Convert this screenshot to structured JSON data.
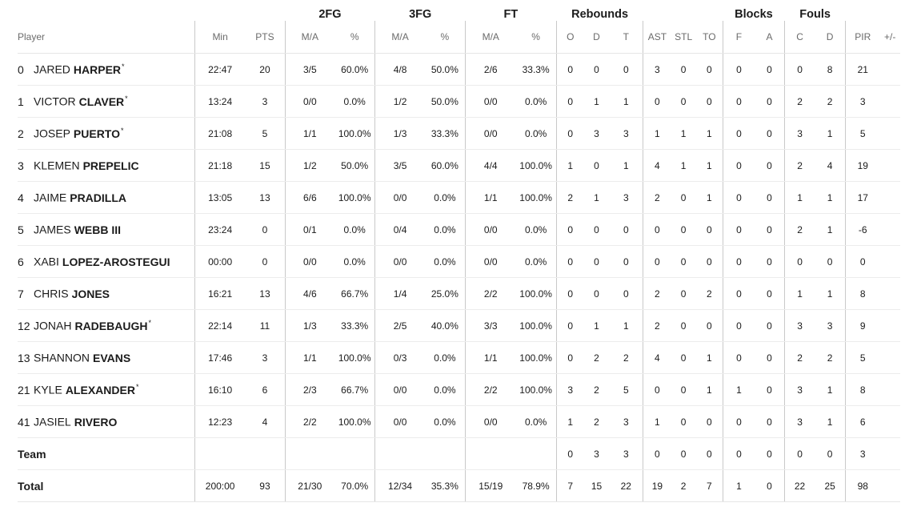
{
  "groups": {
    "two_fg": "2FG",
    "three_fg": "3FG",
    "ft": "FT",
    "rebounds": "Rebounds",
    "blocks": "Blocks",
    "fouls": "Fouls"
  },
  "columns": {
    "player": "Player",
    "min": "Min",
    "pts": "PTS",
    "fg2_ma": "M/A",
    "fg2_pct": "%",
    "fg3_ma": "M/A",
    "fg3_pct": "%",
    "ft_ma": "M/A",
    "ft_pct": "%",
    "reb_o": "O",
    "reb_d": "D",
    "reb_t": "T",
    "ast": "AST",
    "stl": "STL",
    "to": "TO",
    "blk_f": "F",
    "blk_a": "A",
    "foul_c": "C",
    "foul_d": "D",
    "pir": "PIR",
    "pm": "+/-"
  },
  "players": [
    {
      "dorsal": "0",
      "first": "JARED",
      "last": "HARPER",
      "starter": "*",
      "min": "22:47",
      "pts": "20",
      "fg2_ma": "3/5",
      "fg2_pct": "60.0%",
      "fg3_ma": "4/8",
      "fg3_pct": "50.0%",
      "ft_ma": "2/6",
      "ft_pct": "33.3%",
      "reb_o": "0",
      "reb_d": "0",
      "reb_t": "0",
      "ast": "3",
      "stl": "0",
      "to": "0",
      "blk_f": "0",
      "blk_a": "0",
      "foul_c": "0",
      "foul_d": "8",
      "pir": "21",
      "pm": ""
    },
    {
      "dorsal": "1",
      "first": "VICTOR",
      "last": "CLAVER",
      "starter": "*",
      "min": "13:24",
      "pts": "3",
      "fg2_ma": "0/0",
      "fg2_pct": "0.0%",
      "fg3_ma": "1/2",
      "fg3_pct": "50.0%",
      "ft_ma": "0/0",
      "ft_pct": "0.0%",
      "reb_o": "0",
      "reb_d": "1",
      "reb_t": "1",
      "ast": "0",
      "stl": "0",
      "to": "0",
      "blk_f": "0",
      "blk_a": "0",
      "foul_c": "2",
      "foul_d": "2",
      "pir": "3",
      "pm": ""
    },
    {
      "dorsal": "2",
      "first": "JOSEP",
      "last": "PUERTO",
      "starter": "*",
      "min": "21:08",
      "pts": "5",
      "fg2_ma": "1/1",
      "fg2_pct": "100.0%",
      "fg3_ma": "1/3",
      "fg3_pct": "33.3%",
      "ft_ma": "0/0",
      "ft_pct": "0.0%",
      "reb_o": "0",
      "reb_d": "3",
      "reb_t": "3",
      "ast": "1",
      "stl": "1",
      "to": "1",
      "blk_f": "0",
      "blk_a": "0",
      "foul_c": "3",
      "foul_d": "1",
      "pir": "5",
      "pm": ""
    },
    {
      "dorsal": "3",
      "first": "KLEMEN",
      "last": "PREPELIC",
      "starter": "",
      "min": "21:18",
      "pts": "15",
      "fg2_ma": "1/2",
      "fg2_pct": "50.0%",
      "fg3_ma": "3/5",
      "fg3_pct": "60.0%",
      "ft_ma": "4/4",
      "ft_pct": "100.0%",
      "reb_o": "1",
      "reb_d": "0",
      "reb_t": "1",
      "ast": "4",
      "stl": "1",
      "to": "1",
      "blk_f": "0",
      "blk_a": "0",
      "foul_c": "2",
      "foul_d": "4",
      "pir": "19",
      "pm": ""
    },
    {
      "dorsal": "4",
      "first": "JAIME",
      "last": "PRADILLA",
      "starter": "",
      "min": "13:05",
      "pts": "13",
      "fg2_ma": "6/6",
      "fg2_pct": "100.0%",
      "fg3_ma": "0/0",
      "fg3_pct": "0.0%",
      "ft_ma": "1/1",
      "ft_pct": "100.0%",
      "reb_o": "2",
      "reb_d": "1",
      "reb_t": "3",
      "ast": "2",
      "stl": "0",
      "to": "1",
      "blk_f": "0",
      "blk_a": "0",
      "foul_c": "1",
      "foul_d": "1",
      "pir": "17",
      "pm": ""
    },
    {
      "dorsal": "5",
      "first": "JAMES",
      "last": "WEBB III",
      "starter": "",
      "min": "23:24",
      "pts": "0",
      "fg2_ma": "0/1",
      "fg2_pct": "0.0%",
      "fg3_ma": "0/4",
      "fg3_pct": "0.0%",
      "ft_ma": "0/0",
      "ft_pct": "0.0%",
      "reb_o": "0",
      "reb_d": "0",
      "reb_t": "0",
      "ast": "0",
      "stl": "0",
      "to": "0",
      "blk_f": "0",
      "blk_a": "0",
      "foul_c": "2",
      "foul_d": "1",
      "pir": "-6",
      "pm": ""
    },
    {
      "dorsal": "6",
      "first": "XABI",
      "last": "LOPEZ-AROSTEGUI",
      "starter": "",
      "min": "00:00",
      "pts": "0",
      "fg2_ma": "0/0",
      "fg2_pct": "0.0%",
      "fg3_ma": "0/0",
      "fg3_pct": "0.0%",
      "ft_ma": "0/0",
      "ft_pct": "0.0%",
      "reb_o": "0",
      "reb_d": "0",
      "reb_t": "0",
      "ast": "0",
      "stl": "0",
      "to": "0",
      "blk_f": "0",
      "blk_a": "0",
      "foul_c": "0",
      "foul_d": "0",
      "pir": "0",
      "pm": ""
    },
    {
      "dorsal": "7",
      "first": "CHRIS",
      "last": "JONES",
      "starter": "",
      "min": "16:21",
      "pts": "13",
      "fg2_ma": "4/6",
      "fg2_pct": "66.7%",
      "fg3_ma": "1/4",
      "fg3_pct": "25.0%",
      "ft_ma": "2/2",
      "ft_pct": "100.0%",
      "reb_o": "0",
      "reb_d": "0",
      "reb_t": "0",
      "ast": "2",
      "stl": "0",
      "to": "2",
      "blk_f": "0",
      "blk_a": "0",
      "foul_c": "1",
      "foul_d": "1",
      "pir": "8",
      "pm": ""
    },
    {
      "dorsal": "12",
      "first": "JONAH",
      "last": "RADEBAUGH",
      "starter": "*",
      "min": "22:14",
      "pts": "11",
      "fg2_ma": "1/3",
      "fg2_pct": "33.3%",
      "fg3_ma": "2/5",
      "fg3_pct": "40.0%",
      "ft_ma": "3/3",
      "ft_pct": "100.0%",
      "reb_o": "0",
      "reb_d": "1",
      "reb_t": "1",
      "ast": "2",
      "stl": "0",
      "to": "0",
      "blk_f": "0",
      "blk_a": "0",
      "foul_c": "3",
      "foul_d": "3",
      "pir": "9",
      "pm": ""
    },
    {
      "dorsal": "13",
      "first": "SHANNON",
      "last": "EVANS",
      "starter": "",
      "min": "17:46",
      "pts": "3",
      "fg2_ma": "1/1",
      "fg2_pct": "100.0%",
      "fg3_ma": "0/3",
      "fg3_pct": "0.0%",
      "ft_ma": "1/1",
      "ft_pct": "100.0%",
      "reb_o": "0",
      "reb_d": "2",
      "reb_t": "2",
      "ast": "4",
      "stl": "0",
      "to": "1",
      "blk_f": "0",
      "blk_a": "0",
      "foul_c": "2",
      "foul_d": "2",
      "pir": "5",
      "pm": ""
    },
    {
      "dorsal": "21",
      "first": "KYLE",
      "last": "ALEXANDER",
      "starter": "*",
      "min": "16:10",
      "pts": "6",
      "fg2_ma": "2/3",
      "fg2_pct": "66.7%",
      "fg3_ma": "0/0",
      "fg3_pct": "0.0%",
      "ft_ma": "2/2",
      "ft_pct": "100.0%",
      "reb_o": "3",
      "reb_d": "2",
      "reb_t": "5",
      "ast": "0",
      "stl": "0",
      "to": "1",
      "blk_f": "1",
      "blk_a": "0",
      "foul_c": "3",
      "foul_d": "1",
      "pir": "8",
      "pm": ""
    },
    {
      "dorsal": "41",
      "first": "JASIEL",
      "last": "RIVERO",
      "starter": "",
      "min": "12:23",
      "pts": "4",
      "fg2_ma": "2/2",
      "fg2_pct": "100.0%",
      "fg3_ma": "0/0",
      "fg3_pct": "0.0%",
      "ft_ma": "0/0",
      "ft_pct": "0.0%",
      "reb_o": "1",
      "reb_d": "2",
      "reb_t": "3",
      "ast": "1",
      "stl": "0",
      "to": "0",
      "blk_f": "0",
      "blk_a": "0",
      "foul_c": "3",
      "foul_d": "1",
      "pir": "6",
      "pm": ""
    }
  ],
  "team": {
    "label": "Team",
    "min": "",
    "pts": "",
    "fg2_ma": "",
    "fg2_pct": "",
    "fg3_ma": "",
    "fg3_pct": "",
    "ft_ma": "",
    "ft_pct": "",
    "reb_o": "0",
    "reb_d": "3",
    "reb_t": "3",
    "ast": "0",
    "stl": "0",
    "to": "0",
    "blk_f": "0",
    "blk_a": "0",
    "foul_c": "0",
    "foul_d": "0",
    "pir": "3",
    "pm": ""
  },
  "total": {
    "label": "Total",
    "min": "200:00",
    "pts": "93",
    "fg2_ma": "21/30",
    "fg2_pct": "70.0%",
    "fg3_ma": "12/34",
    "fg3_pct": "35.3%",
    "ft_ma": "15/19",
    "ft_pct": "78.9%",
    "reb_o": "7",
    "reb_d": "15",
    "reb_t": "22",
    "ast": "19",
    "stl": "2",
    "to": "7",
    "blk_f": "1",
    "blk_a": "0",
    "foul_c": "22",
    "foul_d": "25",
    "pir": "98",
    "pm": ""
  }
}
